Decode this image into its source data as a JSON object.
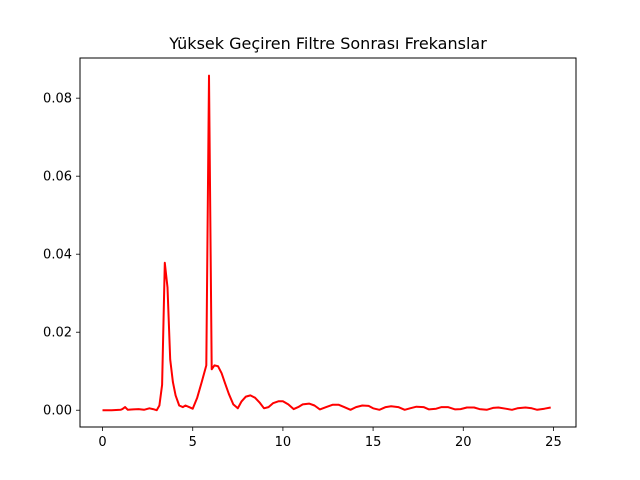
{
  "chart_data": {
    "type": "line",
    "title": "Yüksek Geçiren Filtre Sonrası Frekanslar",
    "xlabel": "",
    "ylabel": "",
    "xlim": [
      -1.25,
      26.25
    ],
    "ylim": [
      -0.0043,
      0.0903
    ],
    "grid": false,
    "x_ticks": [
      0,
      5,
      10,
      15,
      20,
      25
    ],
    "x_tick_labels": [
      "0",
      "5",
      "10",
      "15",
      "20",
      "25"
    ],
    "y_ticks": [
      0.0,
      0.02,
      0.04,
      0.06,
      0.08
    ],
    "y_tick_labels": [
      "0.00",
      "0.02",
      "0.04",
      "0.06",
      "0.08"
    ],
    "series": [
      {
        "color": "#ff0000",
        "x": [
          0,
          0.5,
          1.0,
          1.1,
          1.25,
          1.4,
          1.7,
          2.0,
          2.3,
          2.6,
          2.8,
          3.0,
          3.15,
          3.3,
          3.45,
          3.6,
          3.75,
          3.9,
          4.05,
          4.25,
          4.45,
          4.6,
          4.8,
          5.0,
          5.25,
          5.5,
          5.75,
          5.9,
          6.05,
          6.2,
          6.4,
          6.6,
          6.8,
          7.0,
          7.25,
          7.5,
          7.7,
          7.95,
          8.2,
          8.45,
          8.7,
          8.95,
          9.2,
          9.45,
          9.75,
          10.0,
          10.3,
          10.6,
          10.85,
          11.1,
          11.45,
          11.75,
          12.05,
          12.4,
          12.75,
          13.1,
          13.4,
          13.75,
          14.05,
          14.4,
          14.75,
          15.0,
          15.35,
          15.7,
          16.0,
          16.4,
          16.75,
          17.05,
          17.4,
          17.8,
          18.1,
          18.5,
          18.8,
          19.15,
          19.55,
          19.85,
          20.2,
          20.6,
          20.9,
          21.3,
          21.65,
          21.95,
          22.35,
          22.7,
          23.0,
          23.45,
          23.8,
          24.1,
          24.5,
          24.85
        ],
        "values": [
          0.0,
          0.0,
          0.0001,
          0.0003,
          0.0008,
          0.0001,
          0.0002,
          0.0003,
          0.0001,
          0.0005,
          0.0003,
          0.0,
          0.0012,
          0.0065,
          0.0378,
          0.0315,
          0.013,
          0.0072,
          0.0038,
          0.0012,
          0.0008,
          0.0012,
          0.0008,
          0.0004,
          0.0032,
          0.0072,
          0.0115,
          0.0858,
          0.0105,
          0.0115,
          0.0113,
          0.0095,
          0.0068,
          0.0042,
          0.0015,
          0.0005,
          0.0022,
          0.0035,
          0.0038,
          0.0032,
          0.002,
          0.0005,
          0.0008,
          0.0018,
          0.0023,
          0.0023,
          0.0015,
          0.0003,
          0.0008,
          0.0015,
          0.0017,
          0.0012,
          0.0002,
          0.0008,
          0.0014,
          0.0014,
          0.0008,
          0.0001,
          0.0008,
          0.0012,
          0.0011,
          0.0005,
          0.0001,
          0.0008,
          0.001,
          0.0008,
          0.0001,
          0.0005,
          0.0009,
          0.0008,
          0.0002,
          0.0004,
          0.0008,
          0.0008,
          0.0002,
          0.0003,
          0.0007,
          0.0007,
          0.0003,
          0.0001,
          0.0006,
          0.0007,
          0.0004,
          0.0001,
          0.0005,
          0.0007,
          0.0005,
          0.0001,
          0.0004,
          0.0007
        ]
      }
    ]
  }
}
